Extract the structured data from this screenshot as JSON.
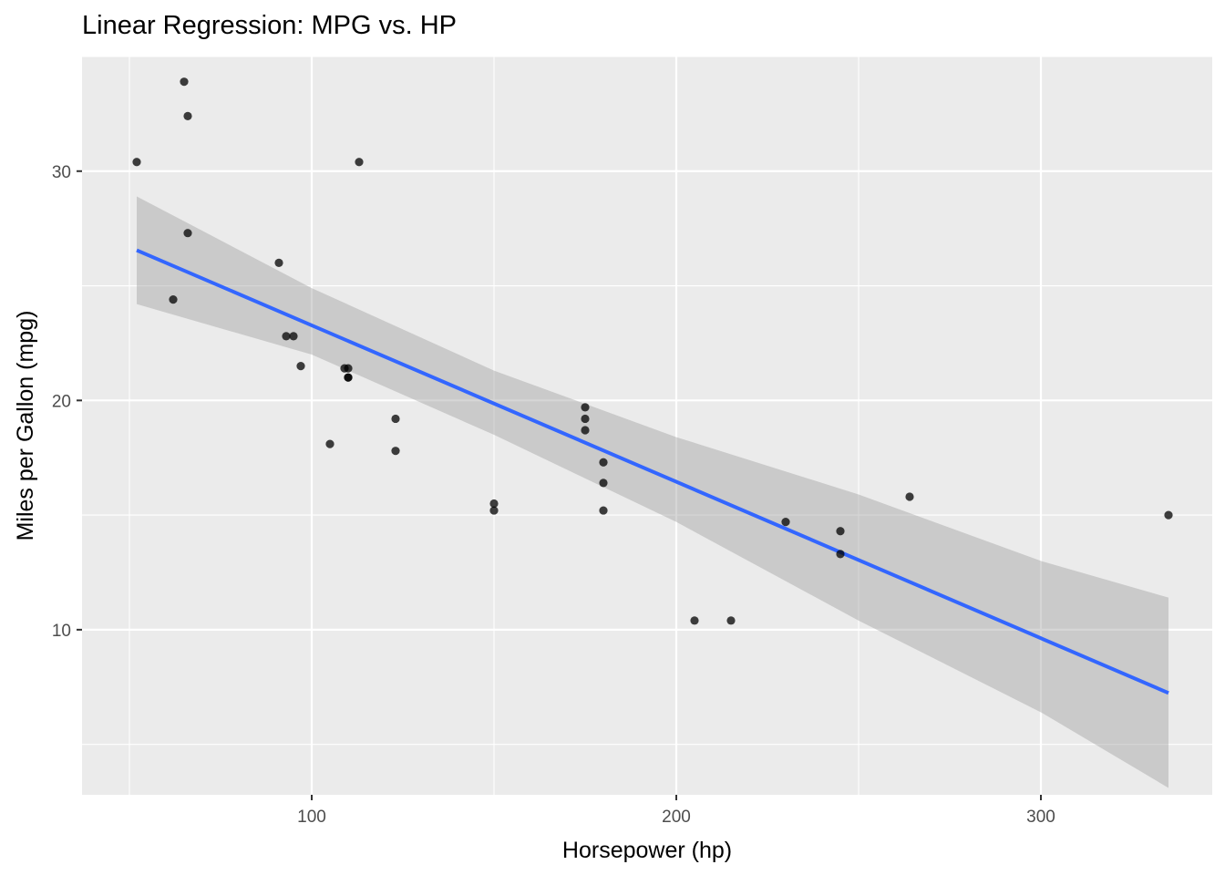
{
  "chart_data": {
    "type": "scatter",
    "title": "Linear Regression: MPG vs. HP",
    "xlabel": "Horsepower (hp)",
    "ylabel": "Miles per Gallon (mpg)",
    "xlim": [
      37,
      347
    ],
    "ylim": [
      2.8,
      35.0
    ],
    "x_ticks": [
      100,
      200,
      300
    ],
    "y_ticks": [
      10,
      20,
      30
    ],
    "grid": true,
    "legend": "none",
    "colors": {
      "panel": "#ebebeb",
      "grid": "#ffffff",
      "point": "#000000",
      "line": "#3366ff",
      "band": "#999999"
    },
    "points": [
      {
        "x": 110,
        "y": 21.0
      },
      {
        "x": 110,
        "y": 21.0
      },
      {
        "x": 93,
        "y": 22.8
      },
      {
        "x": 110,
        "y": 21.4
      },
      {
        "x": 175,
        "y": 18.7
      },
      {
        "x": 105,
        "y": 18.1
      },
      {
        "x": 245,
        "y": 14.3
      },
      {
        "x": 62,
        "y": 24.4
      },
      {
        "x": 95,
        "y": 22.8
      },
      {
        "x": 123,
        "y": 19.2
      },
      {
        "x": 123,
        "y": 17.8
      },
      {
        "x": 180,
        "y": 16.4
      },
      {
        "x": 180,
        "y": 17.3
      },
      {
        "x": 180,
        "y": 15.2
      },
      {
        "x": 205,
        "y": 10.4
      },
      {
        "x": 215,
        "y": 10.4
      },
      {
        "x": 230,
        "y": 14.7
      },
      {
        "x": 66,
        "y": 32.4
      },
      {
        "x": 52,
        "y": 30.4
      },
      {
        "x": 65,
        "y": 33.9
      },
      {
        "x": 97,
        "y": 21.5
      },
      {
        "x": 150,
        "y": 15.5
      },
      {
        "x": 150,
        "y": 15.2
      },
      {
        "x": 245,
        "y": 13.3
      },
      {
        "x": 175,
        "y": 19.2
      },
      {
        "x": 66,
        "y": 27.3
      },
      {
        "x": 91,
        "y": 26.0
      },
      {
        "x": 113,
        "y": 30.4
      },
      {
        "x": 264,
        "y": 15.8
      },
      {
        "x": 175,
        "y": 19.7
      },
      {
        "x": 335,
        "y": 15.0
      },
      {
        "x": 109,
        "y": 21.4
      }
    ],
    "fit": {
      "x": [
        52,
        335
      ],
      "y": [
        26.55,
        7.24
      ]
    },
    "confidence_band": {
      "x": [
        52,
        100,
        150,
        200,
        250,
        300,
        335
      ],
      "lower": [
        24.2,
        22.0,
        18.5,
        14.7,
        10.4,
        6.4,
        3.1
      ],
      "upper": [
        28.9,
        24.9,
        21.3,
        18.4,
        15.9,
        13.0,
        11.4
      ]
    }
  }
}
